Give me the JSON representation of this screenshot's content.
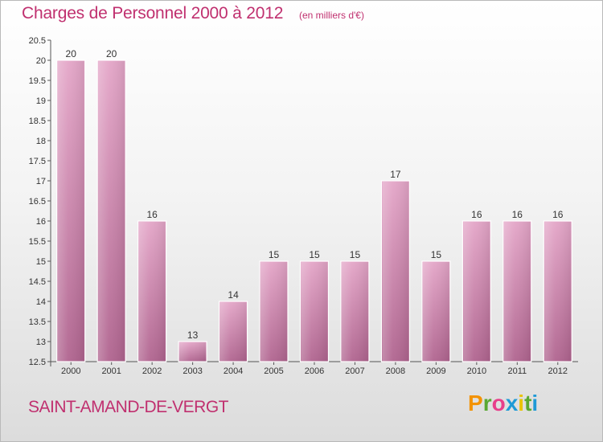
{
  "header": {
    "title": "Charges de Personnel 2000 à 2012",
    "subtitle": "(en milliers d'€)"
  },
  "footer": {
    "city": "SAINT-AMAND-DE-VERGT",
    "logo_text": "Proxiti",
    "logo_colors": [
      "#f39200",
      "#5aa832",
      "#e83f8a",
      "#1f9ad6",
      "#e9c300",
      "#5aa832",
      "#1f9ad6"
    ]
  },
  "chart_data": {
    "type": "bar",
    "categories": [
      "2000",
      "2001",
      "2002",
      "2003",
      "2004",
      "2005",
      "2006",
      "2007",
      "2008",
      "2009",
      "2010",
      "2011",
      "2012"
    ],
    "values": [
      20,
      20,
      16,
      13,
      14,
      15,
      15,
      15,
      17,
      15,
      16,
      16,
      16
    ],
    "ylim": [
      12.5,
      20.5
    ],
    "yticks": [
      "12.5",
      "13",
      "13.5",
      "14",
      "14.5",
      "15",
      "15.5",
      "16",
      "16.5",
      "17",
      "17.5",
      "18",
      "18.5",
      "19",
      "19.5",
      "20",
      "20.5"
    ],
    "bar_color": "#d687b2",
    "grid": false
  }
}
